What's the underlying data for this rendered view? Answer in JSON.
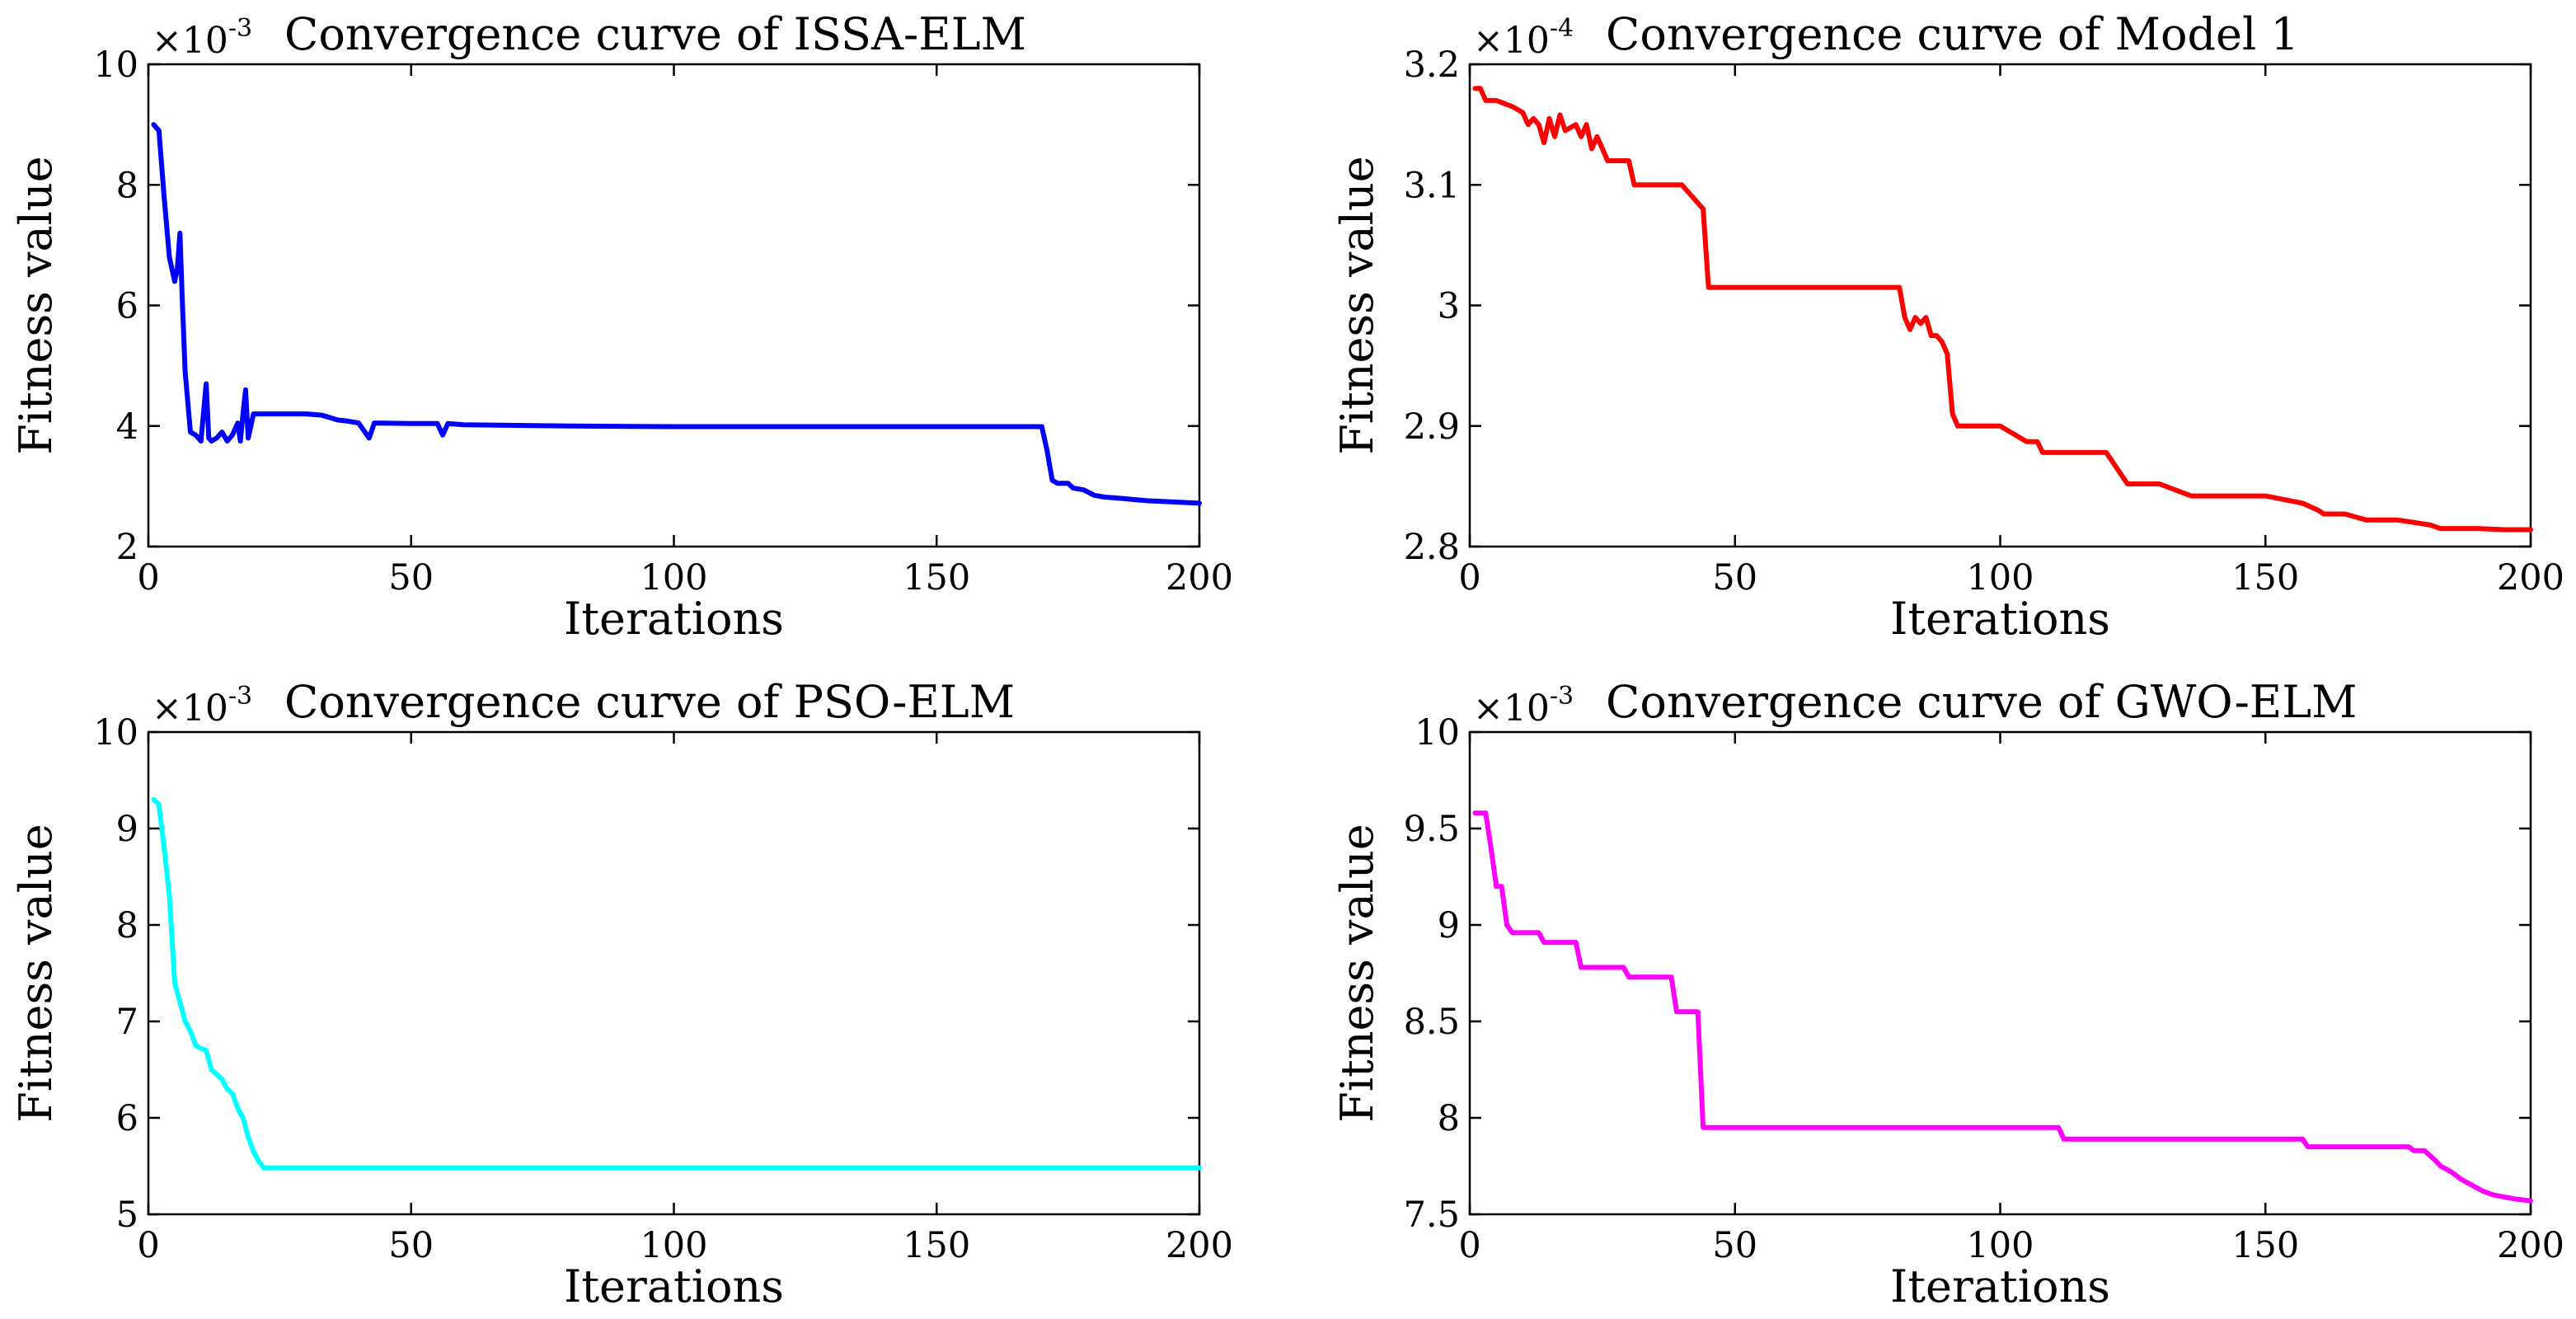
{
  "chart_data": [
    {
      "type": "line",
      "title": "Convergence curve of ISSA-ELM",
      "xlabel": "Iterations",
      "ylabel": "Fitness value",
      "exponent_base": "×10",
      "exponent_power": "-3",
      "xlim": [
        0,
        200
      ],
      "ylim": [
        2,
        10
      ],
      "xticks": [
        0,
        50,
        100,
        150,
        200
      ],
      "yticks": [
        2,
        4,
        6,
        8,
        10
      ],
      "color": "#0000ff",
      "series": [
        {
          "name": "ISSA-ELM",
          "x": [
            1,
            2,
            3,
            4,
            5,
            5.5,
            6,
            6.5,
            7,
            8,
            9,
            10,
            11,
            11.5,
            12,
            13,
            14,
            15,
            16,
            17,
            17.5,
            18,
            18.5,
            19,
            20,
            25,
            30,
            33,
            36,
            38,
            40,
            42,
            43,
            50,
            55,
            56,
            57,
            60,
            70,
            80,
            100,
            150,
            170,
            171,
            172,
            173,
            175,
            176,
            178,
            180,
            182,
            185,
            190,
            195,
            200
          ],
          "y": [
            9.0,
            8.9,
            7.8,
            6.8,
            6.4,
            6.6,
            7.2,
            6.0,
            4.9,
            3.9,
            3.85,
            3.75,
            4.7,
            3.8,
            3.75,
            3.8,
            3.9,
            3.75,
            3.85,
            4.05,
            3.75,
            4.2,
            4.6,
            3.8,
            4.2,
            4.2,
            4.2,
            4.18,
            4.1,
            4.08,
            4.05,
            3.8,
            4.05,
            4.04,
            4.04,
            3.85,
            4.04,
            4.02,
            4.01,
            4.0,
            3.99,
            3.99,
            3.99,
            3.6,
            3.1,
            3.05,
            3.05,
            2.97,
            2.94,
            2.85,
            2.82,
            2.8,
            2.76,
            2.74,
            2.72
          ]
        }
      ]
    },
    {
      "type": "line",
      "title": "Convergence curve of Model 1",
      "xlabel": "Iterations",
      "ylabel": "Fitness value",
      "exponent_base": "×10",
      "exponent_power": "-4",
      "xlim": [
        0,
        200
      ],
      "ylim": [
        2.8,
        3.2
      ],
      "xticks": [
        0,
        50,
        100,
        150,
        200
      ],
      "yticks": [
        2.8,
        2.9,
        3.0,
        3.1,
        3.2
      ],
      "ytick_labels": [
        "2.8",
        "2.9",
        "3",
        "3.1",
        "3.2"
      ],
      "color": "#ff0000",
      "series": [
        {
          "name": "Model 1",
          "x": [
            1,
            2,
            3,
            5,
            8,
            10,
            11,
            12,
            13,
            14,
            15,
            16,
            17,
            18,
            20,
            21,
            22,
            23,
            24,
            25,
            26,
            30,
            31,
            35,
            40,
            43,
            44,
            45,
            46,
            60,
            70,
            81,
            82,
            83,
            84,
            85,
            86,
            87,
            88,
            89,
            90,
            91,
            92,
            95,
            100,
            105,
            107,
            108,
            110,
            120,
            124,
            125,
            130,
            136,
            137,
            150,
            157,
            160,
            161,
            165,
            169,
            170,
            175,
            181,
            183,
            190,
            195,
            200
          ],
          "y": [
            3.18,
            3.18,
            3.17,
            3.17,
            3.165,
            3.16,
            3.15,
            3.155,
            3.15,
            3.135,
            3.155,
            3.14,
            3.158,
            3.145,
            3.15,
            3.14,
            3.15,
            3.13,
            3.14,
            3.13,
            3.12,
            3.12,
            3.1,
            3.1,
            3.1,
            3.085,
            3.08,
            3.015,
            3.015,
            3.015,
            3.015,
            3.015,
            2.99,
            2.98,
            2.99,
            2.985,
            2.99,
            2.975,
            2.975,
            2.97,
            2.96,
            2.91,
            2.9,
            2.9,
            2.9,
            2.887,
            2.887,
            2.878,
            2.878,
            2.878,
            2.852,
            2.852,
            2.852,
            2.842,
            2.842,
            2.842,
            2.836,
            2.83,
            2.827,
            2.827,
            2.822,
            2.822,
            2.822,
            2.818,
            2.815,
            2.815,
            2.814,
            2.814
          ]
        }
      ]
    },
    {
      "type": "line",
      "title": "Convergence curve of PSO-ELM",
      "xlabel": "Iterations",
      "ylabel": "Fitness value",
      "exponent_base": "×10",
      "exponent_power": "-3",
      "xlim": [
        0,
        200
      ],
      "ylim": [
        5,
        10
      ],
      "xticks": [
        0,
        50,
        100,
        150,
        200
      ],
      "yticks": [
        5,
        6,
        7,
        8,
        9,
        10
      ],
      "color": "#00ffff",
      "series": [
        {
          "name": "PSO-ELM",
          "x": [
            1,
            2,
            3,
            4,
            5,
            6,
            7,
            8,
            9,
            10,
            11,
            12,
            13,
            14,
            15,
            16,
            17,
            18,
            19,
            20,
            21,
            22,
            23,
            50,
            100,
            150,
            200
          ],
          "y": [
            9.3,
            9.25,
            8.8,
            8.3,
            7.4,
            7.2,
            7.0,
            6.9,
            6.75,
            6.72,
            6.7,
            6.5,
            6.45,
            6.4,
            6.3,
            6.25,
            6.1,
            6.0,
            5.8,
            5.65,
            5.55,
            5.48,
            5.48,
            5.48,
            5.48,
            5.48,
            5.48
          ]
        }
      ]
    },
    {
      "type": "line",
      "title": "Convergence curve of GWO-ELM",
      "xlabel": "Iterations",
      "ylabel": "Fitness value",
      "exponent_base": "×10",
      "exponent_power": "-3",
      "xlim": [
        0,
        200
      ],
      "ylim": [
        7.5,
        10
      ],
      "xticks": [
        0,
        50,
        100,
        150,
        200
      ],
      "yticks": [
        7.5,
        8.0,
        8.5,
        9.0,
        9.5,
        10
      ],
      "ytick_labels": [
        "7.5",
        "8",
        "8.5",
        "9",
        "9.5",
        "10"
      ],
      "color": "#ff00ff",
      "series": [
        {
          "name": "GWO-ELM",
          "x": [
            1,
            3,
            4,
            5,
            6,
            7,
            8,
            13,
            14,
            20,
            21,
            29,
            30,
            38,
            39,
            43,
            44,
            60,
            80,
            111,
            112,
            130,
            157,
            158,
            177,
            178,
            180,
            182,
            183,
            185,
            187,
            189,
            191,
            193,
            195,
            197,
            200
          ],
          "y": [
            9.58,
            9.58,
            9.4,
            9.2,
            9.2,
            9.0,
            8.96,
            8.96,
            8.91,
            8.91,
            8.78,
            8.78,
            8.73,
            8.73,
            8.55,
            8.55,
            7.95,
            7.95,
            7.95,
            7.95,
            7.89,
            7.89,
            7.89,
            7.85,
            7.85,
            7.83,
            7.83,
            7.78,
            7.75,
            7.72,
            7.68,
            7.65,
            7.62,
            7.6,
            7.59,
            7.58,
            7.57
          ]
        }
      ]
    }
  ]
}
